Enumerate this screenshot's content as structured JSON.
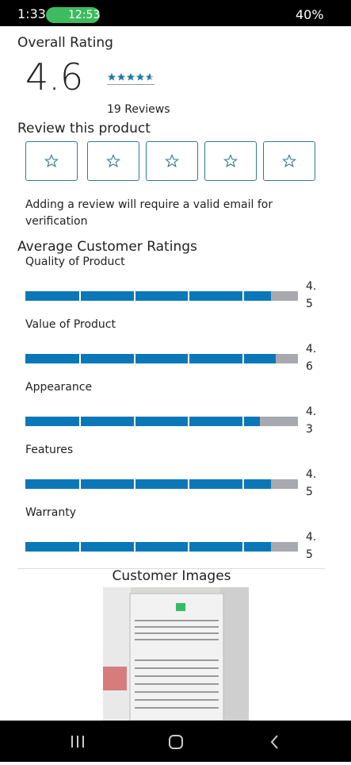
{
  "status_bar": {
    "time": "1:33",
    "call_time": "12:53",
    "battery": "40%"
  },
  "overall": {
    "heading": "Overall Rating",
    "rating": 4.6,
    "reviews": "19 Reviews"
  },
  "review": {
    "heading": "Review this product",
    "note": "Adding a review will require a valid email for verification"
  },
  "averages": {
    "heading": "Average Customer Ratings",
    "items": [
      {
        "label": "Quality of Product",
        "value": 4.5
      },
      {
        "label": "Value of Product",
        "value": 4.6
      },
      {
        "label": "Appearance",
        "value": 4.3
      },
      {
        "label": "Features",
        "value": 4.5
      },
      {
        "label": "Warranty",
        "value": 4.5
      }
    ]
  },
  "images": {
    "heading": "Customer Images"
  }
}
